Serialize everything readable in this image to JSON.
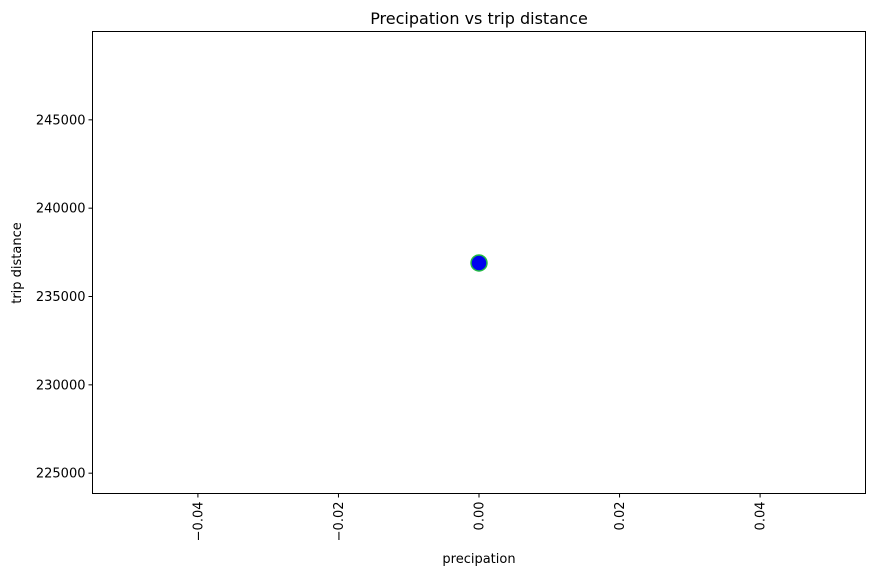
{
  "chart_data": {
    "type": "scatter",
    "title": "Precipation vs trip distance",
    "xlabel": "precipation",
    "ylabel": "trip distance",
    "xlim": [
      -0.055,
      0.055
    ],
    "ylim": [
      223850,
      250000
    ],
    "xticks": [
      -0.04,
      -0.02,
      0.0,
      0.02,
      0.04
    ],
    "xtick_labels": [
      "−0.04",
      "−0.02",
      "0.00",
      "0.02",
      "0.04"
    ],
    "xtick_rotation_deg": 90,
    "yticks": [
      225000,
      230000,
      235000,
      240000,
      245000
    ],
    "ytick_labels": [
      "225000",
      "230000",
      "235000",
      "240000",
      "245000"
    ],
    "grid": false,
    "legend": "none",
    "points": [
      {
        "x": 0.0,
        "y": 236900
      }
    ],
    "marker_fill": "#0000ee",
    "marker_edge": "#22bb44"
  }
}
